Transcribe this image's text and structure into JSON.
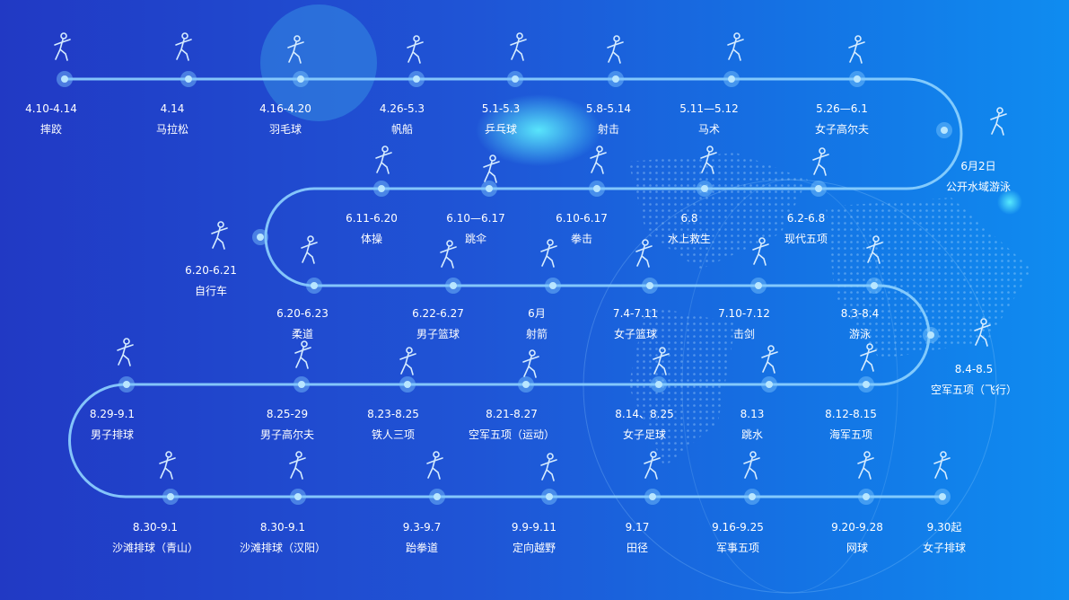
{
  "colors": {
    "track": "#8fd3ff",
    "node": "#7fc8ff",
    "text": "#ffffff",
    "background_left": "#2139c4",
    "background_right": "#0f8cf0"
  },
  "events": [
    {
      "date": "4.10-4.14",
      "name": "摔跤",
      "icon": "wrestling-icon"
    },
    {
      "date": "4.14",
      "name": "马拉松",
      "icon": "marathon-icon"
    },
    {
      "date": "4.16-4.20",
      "name": "羽毛球",
      "icon": "badminton-icon"
    },
    {
      "date": "4.26-5.3",
      "name": "帆船",
      "icon": "sailing-icon"
    },
    {
      "date": "5.1-5.3",
      "name": "乒乓球",
      "icon": "table-tennis-icon"
    },
    {
      "date": "5.8-5.14",
      "name": "射击",
      "icon": "shooting-icon"
    },
    {
      "date": "5.11—5.12",
      "name": "马术",
      "icon": "equestrian-icon"
    },
    {
      "date": "5.26—6.1",
      "name": "女子高尔夫",
      "icon": "golf-icon"
    },
    {
      "date": "6月2日",
      "name": "公开水域游泳",
      "icon": "open-water-swimming-icon"
    },
    {
      "date": "6.2-6.8",
      "name": "现代五项",
      "icon": "modern-pentathlon-icon"
    },
    {
      "date": "6.8",
      "name": "水上救生",
      "icon": "lifesaving-icon"
    },
    {
      "date": "6.10-6.17",
      "name": "拳击",
      "icon": "boxing-icon"
    },
    {
      "date": "6.10—6.17",
      "name": "跳伞",
      "icon": "parachuting-icon"
    },
    {
      "date": "6.11-6.20",
      "name": "体操",
      "icon": "gymnastics-icon"
    },
    {
      "date": "6.20-6.21",
      "name": "自行车",
      "icon": "cycling-icon"
    },
    {
      "date": "6.20-6.23",
      "name": "柔道",
      "icon": "judo-icon"
    },
    {
      "date": "6.22-6.27",
      "name": "男子篮球",
      "icon": "basketball-icon"
    },
    {
      "date": "6月",
      "name": "射箭",
      "icon": "archery-icon"
    },
    {
      "date": "7.4-7.11",
      "name": "女子篮球",
      "icon": "basketball-icon"
    },
    {
      "date": "7.10-7.12",
      "name": "击剑",
      "icon": "fencing-icon"
    },
    {
      "date": "8.3-8.4",
      "name": "游泳",
      "icon": "swimming-icon"
    },
    {
      "date": "8.4-8.5",
      "name": "空军五项（飞行）",
      "icon": "air-force-pentathlon-icon"
    },
    {
      "date": "8.12-8.15",
      "name": "海军五项",
      "icon": "naval-pentathlon-icon"
    },
    {
      "date": "8.13",
      "name": "跳水",
      "icon": "diving-icon"
    },
    {
      "date": "8.14、8.25",
      "name": "女子足球",
      "icon": "football-icon"
    },
    {
      "date": "8.21-8.27",
      "name": "空军五项（运动）",
      "icon": "air-force-pentathlon-icon"
    },
    {
      "date": "8.23-8.25",
      "name": "铁人三项",
      "icon": "triathlon-icon"
    },
    {
      "date": "8.25-29",
      "name": "男子高尔夫",
      "icon": "golf-icon"
    },
    {
      "date": "8.29-9.1",
      "name": "男子排球",
      "icon": "volleyball-icon"
    },
    {
      "date": "8.30-9.1",
      "name": "沙滩排球（青山）",
      "icon": "beach-volleyball-icon"
    },
    {
      "date": "8.30-9.1",
      "name": "沙滩排球（汉阳）",
      "icon": "beach-volleyball-icon"
    },
    {
      "date": "9.3-9.7",
      "name": "跆拳道",
      "icon": "taekwondo-icon"
    },
    {
      "date": "9.9-9.11",
      "name": "定向越野",
      "icon": "orienteering-icon"
    },
    {
      "date": "9.17",
      "name": "田径",
      "icon": "athletics-icon"
    },
    {
      "date": "9.16-9.25",
      "name": "军事五项",
      "icon": "military-pentathlon-icon"
    },
    {
      "date": "9.20-9.28",
      "name": "网球",
      "icon": "tennis-icon"
    },
    {
      "date": "9.30起",
      "name": "女子排球",
      "icon": "volleyball-icon"
    }
  ]
}
